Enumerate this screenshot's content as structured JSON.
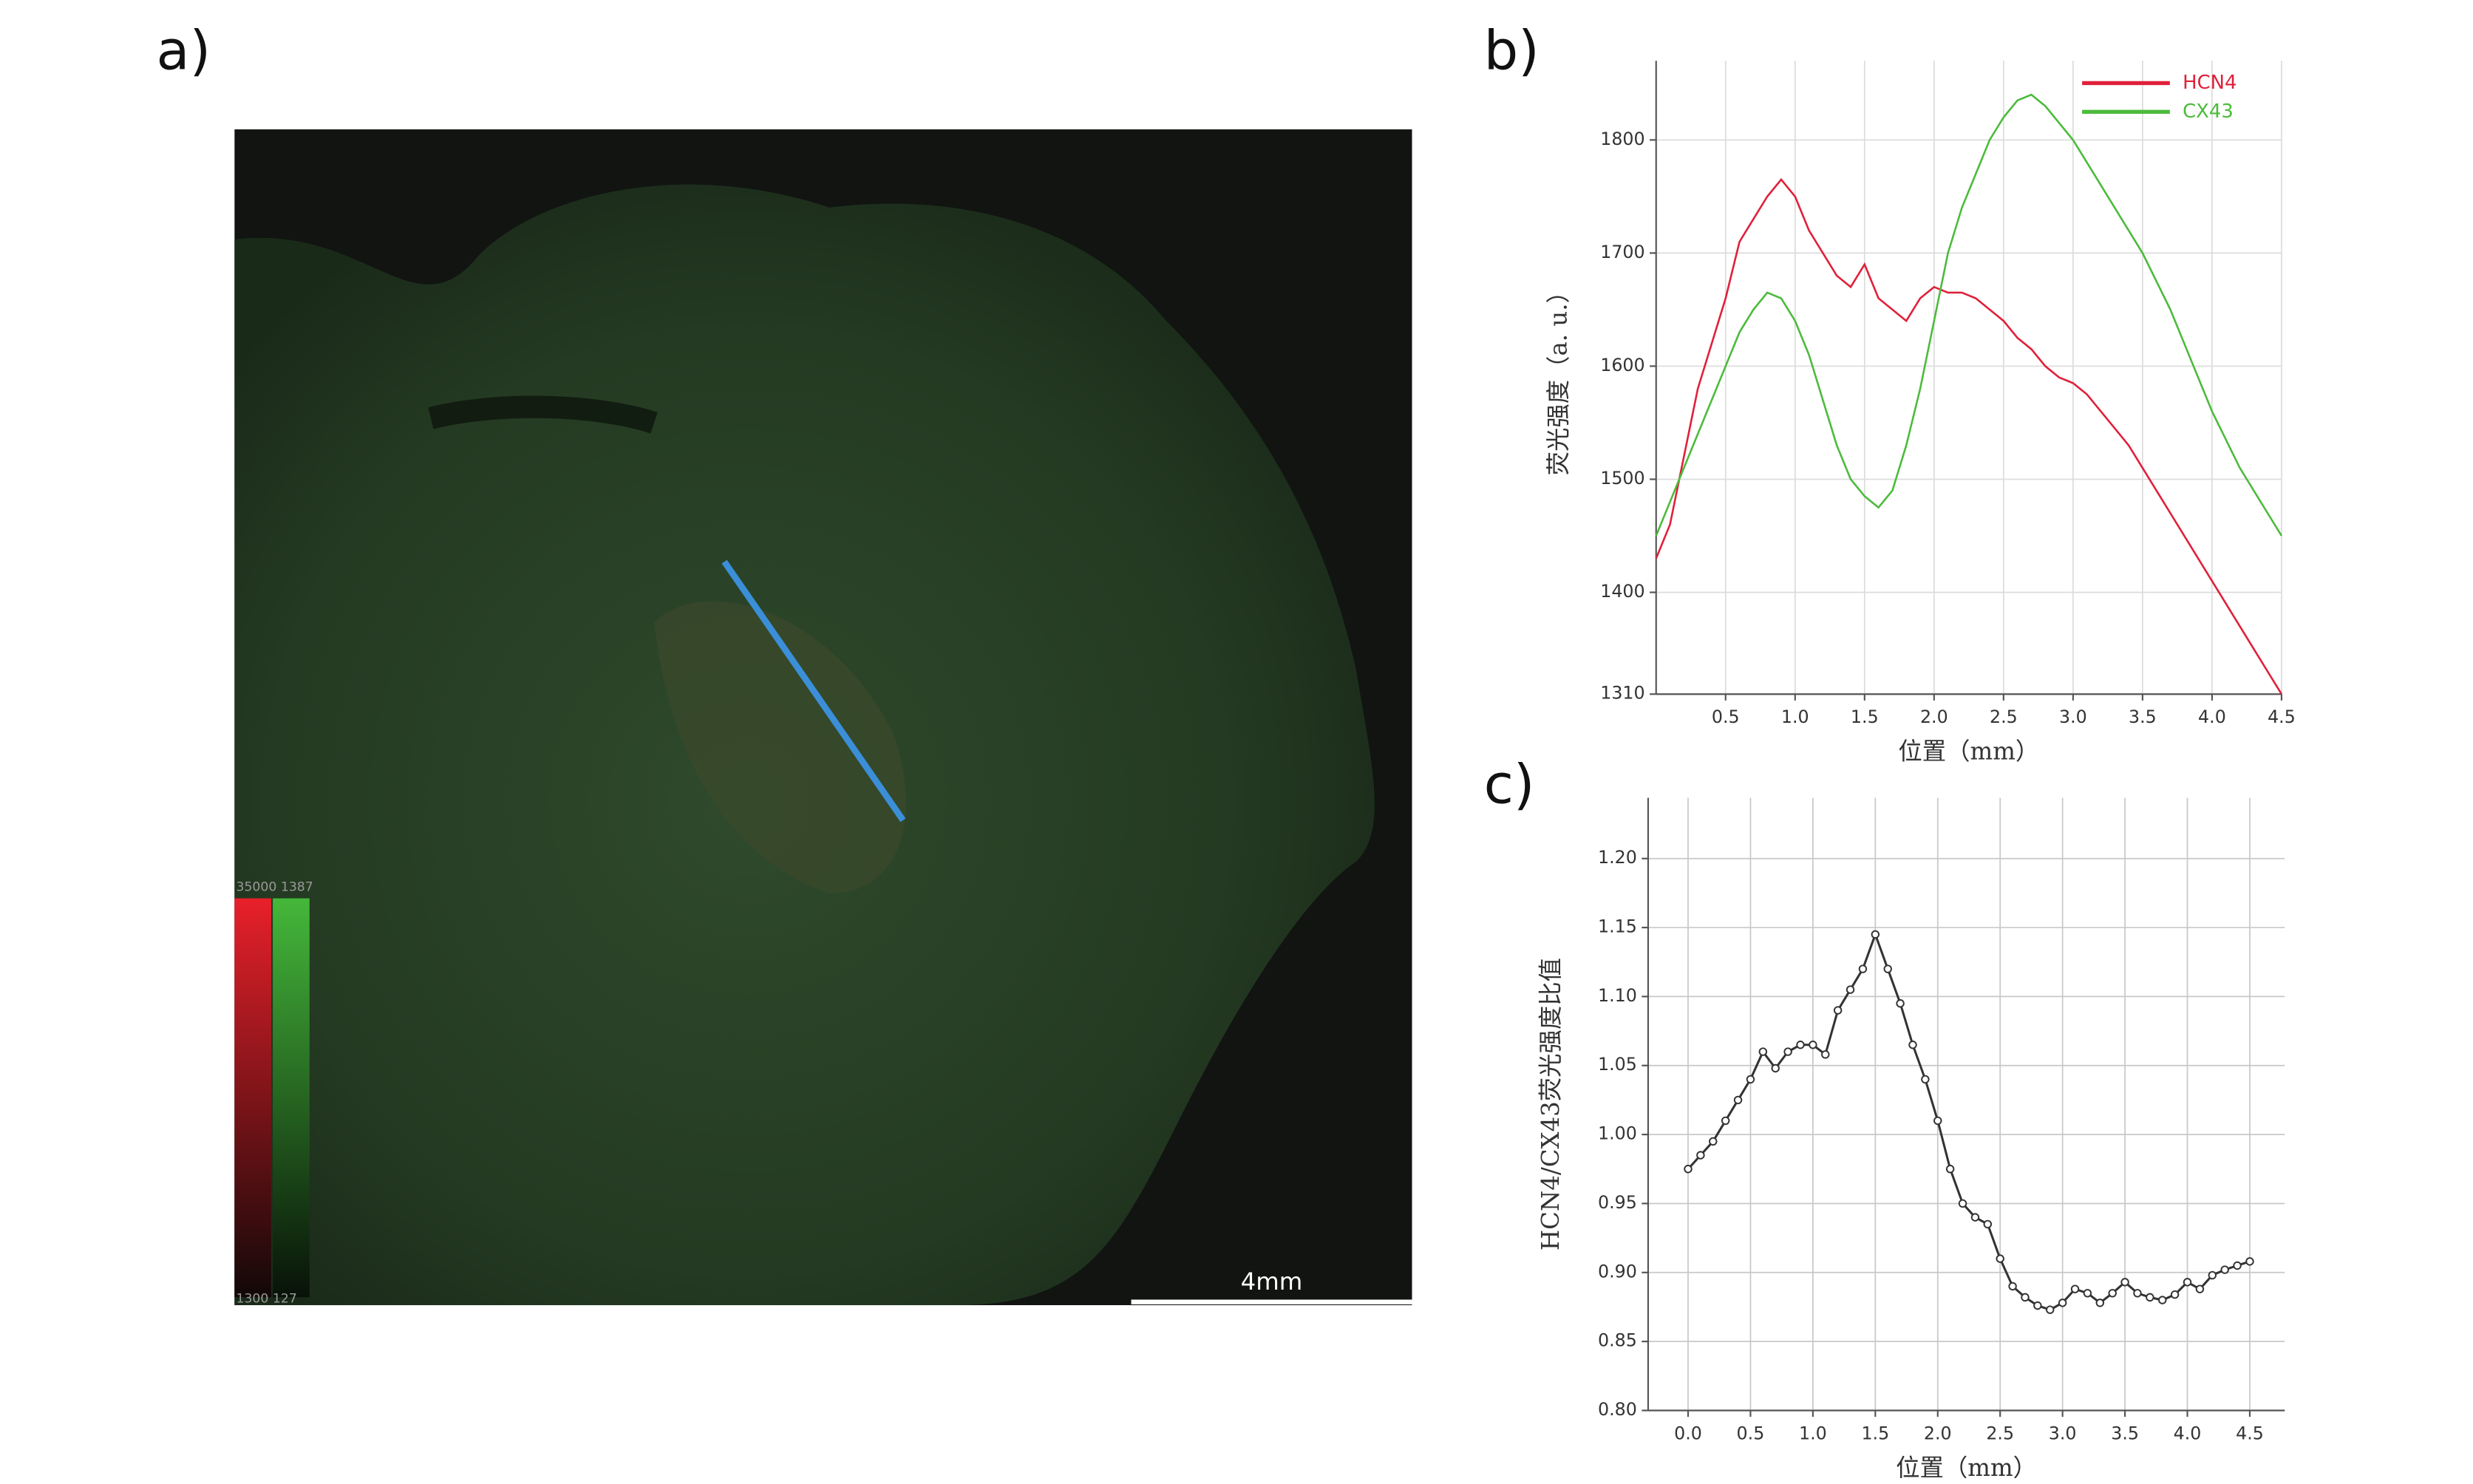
{
  "image": {
    "label": "a)",
    "scale_bar": "4mm",
    "colorbar_max": "35000 1387",
    "colorbar_min": "1300 127"
  },
  "chart_data": [
    {
      "type": "line",
      "label": "b)",
      "xlabel": "位置（mm）",
      "ylabel": "荧光强度（a. u.）",
      "x": [
        0,
        0.1,
        0.2,
        0.3,
        0.4,
        0.5,
        0.6,
        0.7,
        0.8,
        0.9,
        1.0,
        1.1,
        1.2,
        1.3,
        1.4,
        1.5,
        1.6,
        1.7,
        1.8,
        1.9,
        2.0,
        2.1,
        2.2,
        2.3,
        2.4,
        2.5,
        2.6,
        2.7,
        2.8,
        2.9,
        3.0,
        3.1,
        3.2,
        3.3,
        3.4,
        3.5,
        3.6,
        3.7,
        3.8,
        3.9,
        4.0,
        4.1,
        4.2,
        4.3,
        4.4,
        4.5
      ],
      "series": [
        {
          "name": "HCN4",
          "color": "#e0203a",
          "values": [
            1430,
            1460,
            1520,
            1580,
            1620,
            1660,
            1710,
            1730,
            1750,
            1765,
            1750,
            1720,
            1700,
            1680,
            1670,
            1690,
            1660,
            1650,
            1640,
            1660,
            1670,
            1665,
            1665,
            1660,
            1650,
            1640,
            1625,
            1615,
            1600,
            1590,
            1585,
            1575,
            1560,
            1545,
            1530,
            1510,
            1490,
            1470,
            1450,
            1430,
            1410,
            1390,
            1370,
            1350,
            1330,
            1310
          ]
        },
        {
          "name": "CX43",
          "color": "#4cbb3c",
          "values": [
            1450,
            1480,
            1510,
            1540,
            1570,
            1600,
            1630,
            1650,
            1665,
            1660,
            1640,
            1610,
            1570,
            1530,
            1500,
            1485,
            1475,
            1490,
            1530,
            1580,
            1640,
            1700,
            1740,
            1770,
            1800,
            1820,
            1835,
            1840,
            1830,
            1815,
            1800,
            1780,
            1760,
            1740,
            1720,
            1700,
            1675,
            1650,
            1620,
            1590,
            1560,
            1535,
            1510,
            1490,
            1470,
            1450
          ]
        }
      ],
      "xlim": [
        0,
        4.5
      ],
      "ylim": [
        1310,
        1870
      ],
      "xticks": [
        0.5,
        {
          "value": 1.0,
          "label": "1.0"
        },
        1.5,
        {
          "value": 2.0,
          "label": "2.0"
        },
        2.5,
        {
          "value": 3.0,
          "label": "3.0"
        },
        3.5,
        {
          "value": 4.0,
          "label": "4.0"
        },
        4.5
      ],
      "yticks": [
        1310,
        1400,
        1500,
        1600,
        1700,
        1800
      ],
      "grid": true,
      "legend": "top-right",
      "markers": false
    },
    {
      "type": "line",
      "label": "c)",
      "xlabel": "位置（mm）",
      "ylabel": "HCN4/CX43荧光强度比值",
      "x": [
        0,
        0.1,
        0.2,
        0.3,
        0.4,
        0.5,
        0.6,
        0.7,
        0.8,
        0.9,
        1.0,
        1.1,
        1.2,
        1.3,
        1.4,
        1.5,
        1.6,
        1.7,
        1.8,
        1.9,
        2.0,
        2.1,
        2.2,
        2.3,
        2.4,
        2.5,
        2.6,
        2.7,
        2.8,
        2.9,
        3.0,
        3.1,
        3.2,
        3.3,
        3.4,
        3.5,
        3.6,
        3.7,
        3.8,
        3.9,
        4.0,
        4.1,
        4.2,
        4.3,
        4.4,
        4.5
      ],
      "series": [
        {
          "color": "#333333",
          "values": [
            0.975,
            0.985,
            0.995,
            1.01,
            1.025,
            1.04,
            1.06,
            1.048,
            1.06,
            1.065,
            1.065,
            1.058,
            1.09,
            1.105,
            1.12,
            1.145,
            1.12,
            1.095,
            1.065,
            1.04,
            1.01,
            0.975,
            0.95,
            0.94,
            0.935,
            0.91,
            0.89,
            0.882,
            0.876,
            0.873,
            0.878,
            0.888,
            0.885,
            0.878,
            0.885,
            0.893,
            0.885,
            0.882,
            0.88,
            0.884,
            0.893,
            0.888,
            0.898,
            0.902,
            0.905,
            0.908
          ]
        }
      ],
      "xlim": [
        -0.32,
        4.78
      ],
      "ylim": [
        0.8,
        1.244
      ],
      "xticks": [
        {
          "value": 0,
          "label": "0.0"
        },
        0.5,
        {
          "value": 1,
          "label": "1.0"
        },
        1.5,
        {
          "value": 2,
          "label": "2.0"
        },
        2.5,
        {
          "value": 3,
          "label": "3.0"
        },
        3.5,
        {
          "value": 4,
          "label": "4.0"
        },
        4.5
      ],
      "yticks": [
        {
          "value": 0.8,
          "label": "0.80"
        },
        0.85,
        {
          "value": 0.9,
          "label": "0.90"
        },
        0.95,
        {
          "value": 1.0,
          "label": "1.00"
        },
        1.05,
        {
          "value": 1.1,
          "label": "1.10"
        },
        1.15,
        {
          "value": 1.2,
          "label": "1.20"
        }
      ],
      "grid": true,
      "markers": true
    }
  ]
}
